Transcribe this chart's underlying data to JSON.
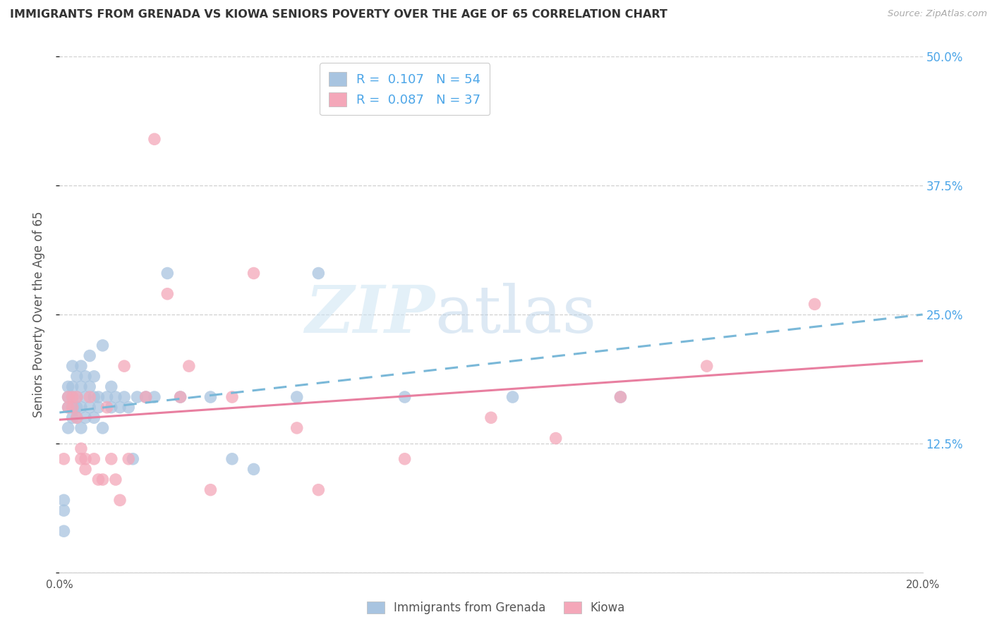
{
  "title": "IMMIGRANTS FROM GRENADA VS KIOWA SENIORS POVERTY OVER THE AGE OF 65 CORRELATION CHART",
  "source": "Source: ZipAtlas.com",
  "ylabel": "Seniors Poverty Over the Age of 65",
  "xlim": [
    0.0,
    0.2
  ],
  "ylim": [
    0.0,
    0.5
  ],
  "ytick_positions": [
    0.0,
    0.125,
    0.25,
    0.375,
    0.5
  ],
  "yticklabels_right": [
    "",
    "12.5%",
    "25.0%",
    "37.5%",
    "50.0%"
  ],
  "color_grenada": "#a8c4e0",
  "color_kiowa": "#f4a7b9",
  "trendline_grenada_color": "#7ab8d8",
  "trendline_kiowa_color": "#e87fa0",
  "label_grenada": "Immigrants from Grenada",
  "label_kiowa": "Kiowa",
  "grenada_x": [
    0.001,
    0.001,
    0.001,
    0.002,
    0.002,
    0.002,
    0.002,
    0.003,
    0.003,
    0.003,
    0.003,
    0.003,
    0.004,
    0.004,
    0.004,
    0.004,
    0.005,
    0.005,
    0.005,
    0.005,
    0.006,
    0.006,
    0.006,
    0.007,
    0.007,
    0.007,
    0.008,
    0.008,
    0.008,
    0.009,
    0.009,
    0.01,
    0.01,
    0.011,
    0.012,
    0.012,
    0.013,
    0.014,
    0.015,
    0.016,
    0.017,
    0.018,
    0.02,
    0.022,
    0.025,
    0.028,
    0.035,
    0.04,
    0.045,
    0.055,
    0.06,
    0.08,
    0.105,
    0.13
  ],
  "grenada_y": [
    0.04,
    0.06,
    0.07,
    0.14,
    0.16,
    0.17,
    0.18,
    0.15,
    0.16,
    0.17,
    0.18,
    0.2,
    0.15,
    0.16,
    0.17,
    0.19,
    0.14,
    0.16,
    0.18,
    0.2,
    0.15,
    0.17,
    0.19,
    0.16,
    0.18,
    0.21,
    0.15,
    0.17,
    0.19,
    0.16,
    0.17,
    0.14,
    0.22,
    0.17,
    0.16,
    0.18,
    0.17,
    0.16,
    0.17,
    0.16,
    0.11,
    0.17,
    0.17,
    0.17,
    0.29,
    0.17,
    0.17,
    0.11,
    0.1,
    0.17,
    0.29,
    0.17,
    0.17,
    0.17
  ],
  "kiowa_x": [
    0.001,
    0.002,
    0.002,
    0.003,
    0.003,
    0.004,
    0.004,
    0.005,
    0.005,
    0.006,
    0.006,
    0.007,
    0.008,
    0.009,
    0.01,
    0.011,
    0.012,
    0.013,
    0.014,
    0.015,
    0.016,
    0.02,
    0.022,
    0.025,
    0.028,
    0.03,
    0.035,
    0.04,
    0.045,
    0.055,
    0.06,
    0.08,
    0.1,
    0.115,
    0.13,
    0.15,
    0.175
  ],
  "kiowa_y": [
    0.11,
    0.16,
    0.17,
    0.16,
    0.17,
    0.15,
    0.17,
    0.11,
    0.12,
    0.1,
    0.11,
    0.17,
    0.11,
    0.09,
    0.09,
    0.16,
    0.11,
    0.09,
    0.07,
    0.2,
    0.11,
    0.17,
    0.42,
    0.27,
    0.17,
    0.2,
    0.08,
    0.17,
    0.29,
    0.14,
    0.08,
    0.11,
    0.15,
    0.13,
    0.17,
    0.2,
    0.26
  ],
  "trendline_grenada_x0": 0.0,
  "trendline_grenada_x1": 0.2,
  "trendline_grenada_y0": 0.155,
  "trendline_grenada_y1": 0.25,
  "trendline_kiowa_x0": 0.0,
  "trendline_kiowa_x1": 0.2,
  "trendline_kiowa_y0": 0.148,
  "trendline_kiowa_y1": 0.205
}
